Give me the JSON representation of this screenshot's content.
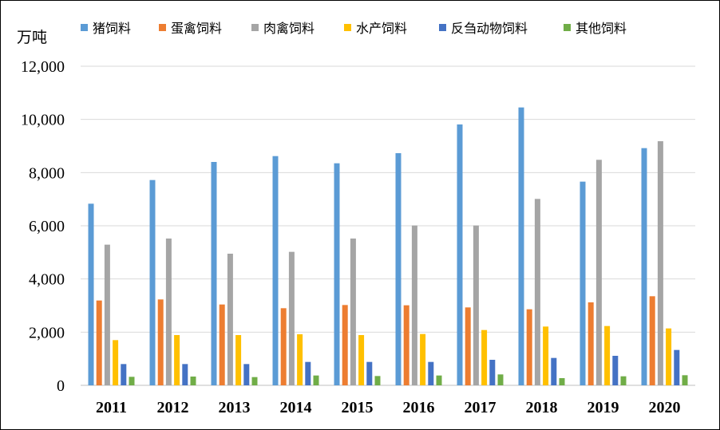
{
  "chart_data": {
    "type": "bar",
    "unit_label": "万吨",
    "categories": [
      "2011",
      "2012",
      "2013",
      "2014",
      "2015",
      "2016",
      "2017",
      "2018",
      "2019",
      "2020"
    ],
    "ylim": [
      0,
      12000
    ],
    "yticks": [
      0,
      2000,
      4000,
      6000,
      8000,
      10000,
      12000
    ],
    "ytick_labels": [
      "0",
      "2,000",
      "4,000",
      "6,000",
      "8,000",
      "10,000",
      "12,000"
    ],
    "grid": true,
    "legend_position": "top",
    "series": [
      {
        "name": "猪饲料",
        "color": "#5b9bd5",
        "values": [
          6830,
          7720,
          8400,
          8620,
          8350,
          8730,
          9810,
          10450,
          7660,
          8920
        ]
      },
      {
        "name": "蛋禽饲料",
        "color": "#ed7d31",
        "values": [
          3190,
          3230,
          3040,
          2900,
          3020,
          3010,
          2930,
          2860,
          3120,
          3350
        ]
      },
      {
        "name": "肉禽饲料",
        "color": "#a5a5a5",
        "values": [
          5290,
          5520,
          4950,
          5020,
          5520,
          6010,
          6010,
          7010,
          8480,
          9180
        ]
      },
      {
        "name": "水产饲料",
        "color": "#ffc000",
        "values": [
          1700,
          1890,
          1890,
          1920,
          1890,
          1930,
          2080,
          2210,
          2230,
          2140
        ]
      },
      {
        "name": "反刍动物饲料",
        "color": "#4472c4",
        "values": [
          800,
          800,
          800,
          880,
          880,
          880,
          960,
          1030,
          1110,
          1330
        ]
      },
      {
        "name": "其他饲料",
        "color": "#70ad47",
        "values": [
          320,
          330,
          310,
          370,
          350,
          370,
          410,
          270,
          340,
          380
        ]
      }
    ]
  }
}
